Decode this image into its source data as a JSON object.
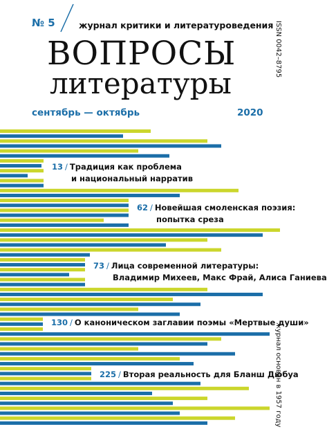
{
  "header": {
    "issue": "№ 5",
    "tagline": "журнал критики и литературоведения",
    "title": [
      "ВОПРОСЫ",
      "литературы"
    ],
    "months": "сентябрь — октябрь",
    "year": "2020",
    "issn": "ISSN 0042–8795"
  },
  "contents": [
    {
      "page": "13",
      "title": [
        "Традиция как проблема",
        "и национальный нарратив"
      ]
    },
    {
      "page": "62",
      "title": [
        "Новейшая смоленская поэзия:",
        "попытка среза"
      ]
    },
    {
      "page": "73",
      "title": [
        "Лица современной литературы:",
        "Владимир Михеев, Макс Фрай, Алиса Ганиева"
      ]
    },
    {
      "page": "130",
      "title": [
        "О каноническом заглавии поэмы «Мертвые души»"
      ]
    },
    {
      "page": "225",
      "title": [
        "Вторая реальность для Бланш Дюбуа"
      ]
    }
  ],
  "footer": {
    "founded": "журнал основан в 1957 году"
  }
}
